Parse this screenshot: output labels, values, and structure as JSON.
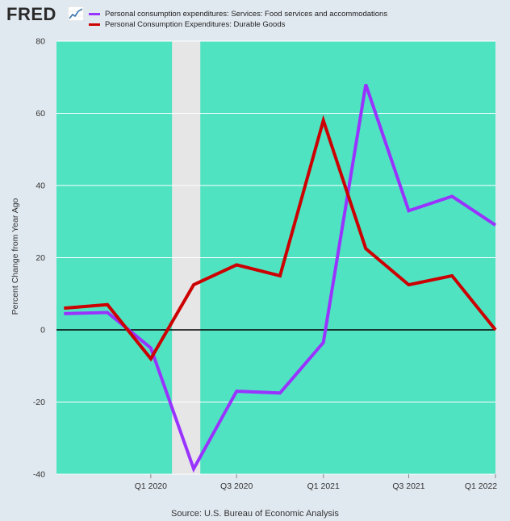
{
  "header": {
    "logo_text": "FRED",
    "logo_graph_icon": "trend-graph-icon"
  },
  "source_text": "Source: U.S. Bureau of Economic Analysis",
  "colors": {
    "page_background": "#e1e9f0",
    "plot_background": "#50e3c2",
    "recession_shading": "#e6e6e6",
    "zero_line": "#000000",
    "gridline": "#ffffff"
  },
  "chart_data": {
    "type": "line",
    "title": "",
    "xlabel": "",
    "ylabel": "Percent Change from Year Ago",
    "ylim": [
      -40,
      80
    ],
    "yticks": [
      -40,
      -20,
      0,
      20,
      40,
      60,
      80
    ],
    "grid": true,
    "legend_position": "top",
    "x": [
      "2019-07-01",
      "2019-10-01",
      "2020-01-01",
      "2020-04-01",
      "2020-07-01",
      "2020-10-01",
      "2021-01-01",
      "2021-04-01",
      "2021-07-01",
      "2021-10-01",
      "2022-01-01"
    ],
    "x_start": "2019-06-15",
    "x_end": "2022-01-01",
    "xticks": [
      {
        "label": "Q1 2020",
        "date": "2020-01-01"
      },
      {
        "label": "Q3 2020",
        "date": "2020-07-01"
      },
      {
        "label": "Q1 2021",
        "date": "2021-01-01"
      },
      {
        "label": "Q3 2021",
        "date": "2021-07-01"
      },
      {
        "label": "Q1 2022",
        "date": "2022-01-01"
      }
    ],
    "recession": {
      "start": "2020-02-15",
      "end": "2020-04-15"
    },
    "series": [
      {
        "name": "Personal consumption expenditures: Services: Food services and accommodations",
        "color": "#9933ff",
        "values": [
          4.5,
          4.8,
          -5.0,
          -38.5,
          -17.0,
          -17.5,
          -3.5,
          68.0,
          33.0,
          37.0,
          29.0
        ]
      },
      {
        "name": "Personal Consumption Expenditures: Durable Goods",
        "color": "#cc0000",
        "values": [
          6.0,
          7.0,
          -8.0,
          12.5,
          18.0,
          15.0,
          58.0,
          22.5,
          12.5,
          15.0,
          0.0
        ]
      }
    ]
  }
}
